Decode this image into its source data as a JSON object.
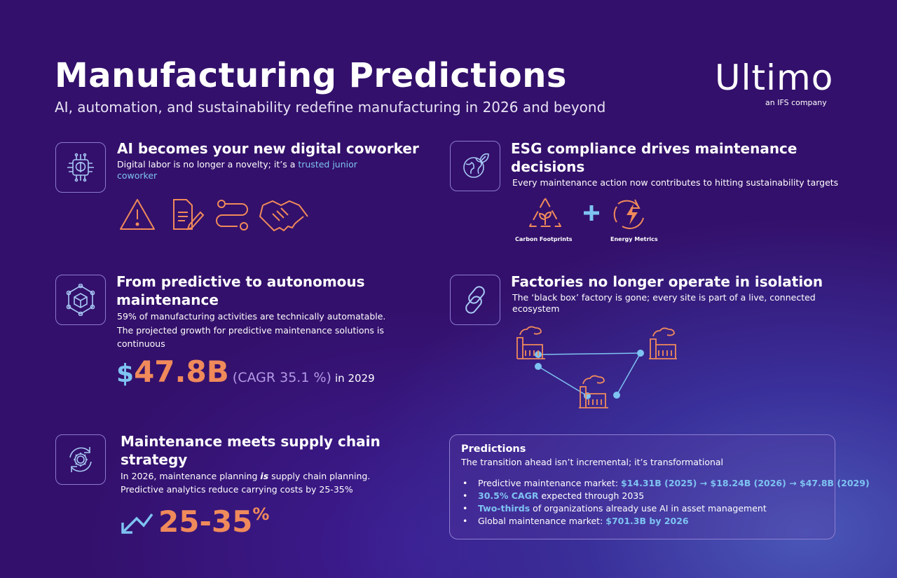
{
  "header": {
    "title": "Manufacturing Predictions",
    "subtitle": "AI, automation, and sustainability redefine manufacturing in 2026 and beyond",
    "logo": "Ultimo",
    "logo_tagline": "an IFS company"
  },
  "sections": {
    "ai": {
      "heading": "AI becomes your new digital coworker",
      "text_before": "Digital labor is no longer a novelty; it’s a ",
      "highlight": "trusted junior coworker"
    },
    "esg": {
      "heading": "ESG compliance drives maintenance decisions",
      "text": "Every maintenance action now contributes to hitting sustainability targets",
      "label_carbon": "Carbon Footprints",
      "label_energy": "Energy Metrics"
    },
    "autonomous": {
      "heading": "From predictive to autonomous maintenance",
      "text1": "59% of manufacturing activities are technically automatable.",
      "text2": "The projected growth for predictive maintenance solutions is continuous",
      "stat_currency": "$",
      "stat_value": "47.8B",
      "stat_cagr": "(CAGR 35.1 %)",
      "stat_year": "in 2029"
    },
    "factories": {
      "heading": "Factories no longer operate in isolation",
      "text": "The ‘black box’ factory is gone; every site is part of a live, connected ecosystem"
    },
    "supply": {
      "heading": "Maintenance meets supply chain strategy",
      "text1_a": "In 2026, maintenance planning ",
      "text1_em": "is",
      "text1_b": " supply chain planning.",
      "text2": "Predictive analytics reduce carrying costs by 25-35%",
      "stat_value": "25-35",
      "stat_unit": "%"
    }
  },
  "predictions": {
    "title": "Predictions",
    "subtitle": "The transition ahead isn’t incremental; it’s transformational",
    "items": [
      {
        "pre": "Predictive maintenance market: ",
        "hl": "$14.31B (2025) → $18.24B (2026) → $47.8B (2029)",
        "post": ""
      },
      {
        "pre": "",
        "hl": "30.5% CAGR",
        "post": " expected through 2035"
      },
      {
        "pre": "",
        "hl": "Two-thirds",
        "post": " of organizations already use AI in asset management"
      },
      {
        "pre": "Global maintenance market: ",
        "hl": "$701.3B by 2026",
        "post": ""
      }
    ]
  },
  "colors": {
    "background": "#33106b",
    "accent_orange": "#f08a5b",
    "accent_blue": "#7ec3f2",
    "accent_purple": "#b39be6"
  }
}
